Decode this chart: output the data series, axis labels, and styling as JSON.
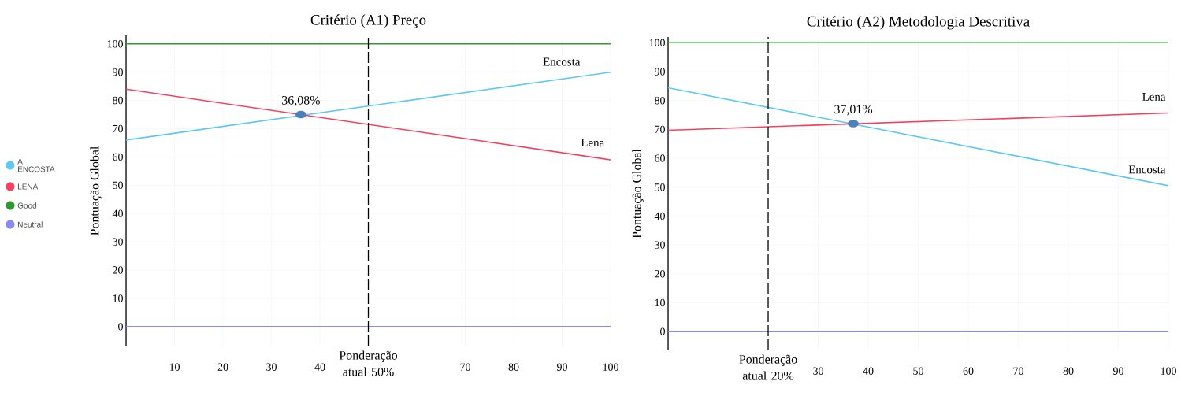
{
  "chart_data": [
    {
      "type": "line",
      "title": "Critério (A1) Preço",
      "ylabel": "Pontuação Global",
      "series": [
        {
          "name": "A ENCOSTA",
          "color": "#5bc8f5",
          "x": [
            0,
            100
          ],
          "values": [
            66,
            90
          ]
        },
        {
          "name": "LENA",
          "color": "#f5405e",
          "x": [
            0,
            100
          ],
          "values": [
            84,
            59
          ]
        },
        {
          "name": "Good",
          "color": "#2e9a2e",
          "x": [
            0,
            100
          ],
          "values": [
            100,
            100
          ]
        },
        {
          "name": "Neutral",
          "color": "#8a8af0",
          "x": [
            0,
            100
          ],
          "values": [
            0,
            0
          ]
        },
        {
          "type": "scatter",
          "color": "#4a7fc0",
          "x": [
            36.08
          ],
          "values": [
            75
          ]
        }
      ],
      "annotations": [
        {
          "text": "36,08%",
          "x": 36.08,
          "y": 75
        },
        "Encosta",
        "Lena"
      ],
      "ref_lines": [
        {
          "axis": "x",
          "value": 50,
          "label": "Ponderação atual 50%",
          "line_style": "dashed",
          "color": "#000000"
        }
      ],
      "xlim": [
        0,
        100
      ],
      "ylim": [
        -7,
        103
      ],
      "xticks": [
        10,
        20,
        30,
        40,
        70,
        80,
        90,
        100
      ],
      "yticks": [
        0,
        10,
        20,
        30,
        40,
        50,
        60,
        70,
        80,
        90,
        100
      ],
      "grid": true,
      "legend": "left"
    },
    {
      "type": "line",
      "title": "Critério (A2) Metodologia Descritiva",
      "ylabel": "Pontuação Global",
      "series": [
        {
          "name": "Encosta",
          "color": "#5bc8f5",
          "x": [
            0,
            100
          ],
          "values": [
            84.4,
            50.5
          ]
        },
        {
          "name": "Lena",
          "color": "#f5405e",
          "x": [
            0,
            100
          ],
          "values": [
            69.7,
            75.7
          ]
        },
        {
          "color": "#2e9a2e",
          "x": [
            0,
            100
          ],
          "values": [
            100,
            100
          ]
        },
        {
          "color": "#8a8af0",
          "x": [
            0,
            100
          ],
          "values": [
            0,
            0
          ]
        },
        {
          "type": "scatter",
          "color": "#4a7fc0",
          "x": [
            37.01
          ],
          "values": [
            72
          ]
        }
      ],
      "annotations": [
        {
          "text": "37,01%",
          "x": 37.01,
          "y": 72
        }
      ],
      "ref_lines": [
        {
          "axis": "x",
          "value": 20,
          "label": "Ponderação atual 20%",
          "line_style": "dashed",
          "color": "#000000"
        }
      ],
      "xlim": [
        0,
        100
      ],
      "ylim": [
        -6.5,
        102
      ],
      "xticks": [
        30,
        40,
        50,
        60,
        70,
        80,
        90,
        100
      ],
      "yticks": [
        0,
        10,
        20,
        30,
        40,
        50,
        60,
        70,
        80,
        90,
        100
      ],
      "grid": true
    }
  ]
}
